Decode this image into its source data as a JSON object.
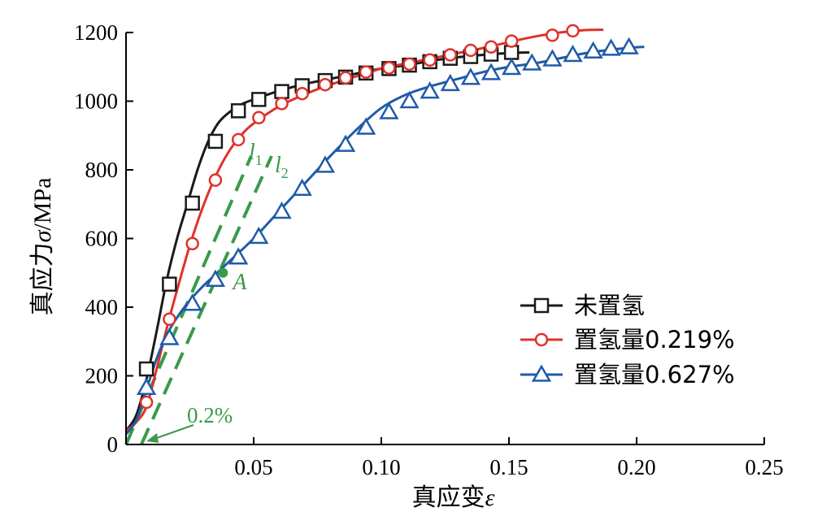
{
  "chart_data": {
    "type": "line",
    "xlabel": "真应变",
    "xlabel_symbol": "ε",
    "ylabel": "真应力",
    "ylabel_symbol": "σ",
    "ylabel_unit": "/MPa",
    "xlim": [
      0.0,
      0.25
    ],
    "ylim": [
      0,
      1200
    ],
    "x_ticks": [
      0.05,
      0.1,
      0.15,
      0.2,
      0.25
    ],
    "x_tick_labels": [
      "0.05",
      "0.10",
      "0.15",
      "0.20",
      "0.25"
    ],
    "y_ticks": [
      0,
      200,
      400,
      600,
      800,
      1000,
      1200
    ],
    "y_tick_labels": [
      "0",
      "200",
      "400",
      "600",
      "800",
      "1000",
      "1200"
    ],
    "grid": false,
    "legend_position": "right",
    "series": [
      {
        "name": "未置氢",
        "color": "#1a1a1a",
        "marker": "square",
        "x": [
          0.0,
          0.004,
          0.008,
          0.012,
          0.016,
          0.02,
          0.024,
          0.028,
          0.032,
          0.036,
          0.04,
          0.045,
          0.05,
          0.06,
          0.07,
          0.08,
          0.09,
          0.1,
          0.11,
          0.12,
          0.13,
          0.14,
          0.15,
          0.158
        ],
        "y": [
          40,
          85,
          190,
          330,
          480,
          600,
          700,
          800,
          880,
          935,
          965,
          990,
          1005,
          1030,
          1050,
          1065,
          1080,
          1095,
          1105,
          1118,
          1128,
          1135,
          1140,
          1142
        ],
        "marker_x": [
          0.008,
          0.017,
          0.026,
          0.035,
          0.044,
          0.052,
          0.061,
          0.069,
          0.078,
          0.086,
          0.094,
          0.103,
          0.111,
          0.119,
          0.127,
          0.135,
          0.143,
          0.151
        ],
        "marker_y": [
          220,
          467,
          703,
          883,
          972,
          1005,
          1028,
          1045,
          1060,
          1070,
          1082,
          1095,
          1105,
          1115,
          1125,
          1130,
          1137,
          1142
        ]
      },
      {
        "name": "置氢量0.219%",
        "color": "#e0312a",
        "marker": "circle",
        "x": [
          0.0,
          0.004,
          0.008,
          0.012,
          0.016,
          0.02,
          0.025,
          0.03,
          0.035,
          0.04,
          0.045,
          0.05,
          0.06,
          0.07,
          0.08,
          0.09,
          0.1,
          0.11,
          0.12,
          0.13,
          0.14,
          0.15,
          0.16,
          0.17,
          0.18,
          0.187
        ],
        "y": [
          40,
          65,
          110,
          220,
          340,
          450,
          580,
          690,
          780,
          850,
          900,
          935,
          985,
          1020,
          1048,
          1072,
          1095,
          1110,
          1125,
          1140,
          1155,
          1172,
          1188,
          1200,
          1207,
          1208
        ],
        "marker_x": [
          0.008,
          0.017,
          0.026,
          0.035,
          0.044,
          0.052,
          0.061,
          0.069,
          0.078,
          0.086,
          0.094,
          0.103,
          0.111,
          0.119,
          0.127,
          0.135,
          0.143,
          0.151,
          0.167,
          0.175
        ],
        "marker_y": [
          123,
          365,
          585,
          770,
          888,
          952,
          993,
          1022,
          1048,
          1068,
          1085,
          1097,
          1108,
          1120,
          1135,
          1148,
          1158,
          1175,
          1192,
          1205
        ]
      },
      {
        "name": "置氢量0.627%",
        "color": "#1f5ba8",
        "marker": "triangle",
        "x": [
          0.0,
          0.004,
          0.008,
          0.012,
          0.016,
          0.02,
          0.025,
          0.03,
          0.035,
          0.04,
          0.05,
          0.06,
          0.07,
          0.08,
          0.09,
          0.1,
          0.11,
          0.12,
          0.13,
          0.14,
          0.15,
          0.16,
          0.17,
          0.18,
          0.19,
          0.2,
          0.203
        ],
        "y": [
          30,
          70,
          160,
          250,
          320,
          370,
          420,
          460,
          495,
          530,
          600,
          680,
          760,
          840,
          915,
          980,
          1020,
          1045,
          1065,
          1085,
          1100,
          1110,
          1125,
          1140,
          1150,
          1157,
          1158
        ],
        "marker_x": [
          0.008,
          0.017,
          0.026,
          0.035,
          0.044,
          0.052,
          0.061,
          0.069,
          0.078,
          0.086,
          0.094,
          0.103,
          0.111,
          0.119,
          0.127,
          0.135,
          0.143,
          0.151,
          0.159,
          0.167,
          0.175,
          0.183,
          0.19,
          0.197
        ],
        "marker_y": [
          165,
          310,
          410,
          480,
          545,
          605,
          678,
          745,
          812,
          873,
          923,
          968,
          1000,
          1028,
          1050,
          1068,
          1082,
          1097,
          1110,
          1122,
          1135,
          1145,
          1153,
          1157
        ]
      }
    ],
    "annotations": {
      "offset_label": "0.2%",
      "point_label": "A",
      "point": {
        "x": 0.038,
        "y": 500
      },
      "line1_label": "l",
      "line1_sub": "1",
      "line2_label": "l",
      "line2_sub": "2",
      "offset_lines": [
        {
          "x": [
            0.0,
            0.049
          ],
          "y": [
            0,
            840
          ]
        },
        {
          "x": [
            0.006,
            0.057
          ],
          "y": [
            0,
            840
          ]
        }
      ],
      "color": "#3a9a4a"
    }
  }
}
